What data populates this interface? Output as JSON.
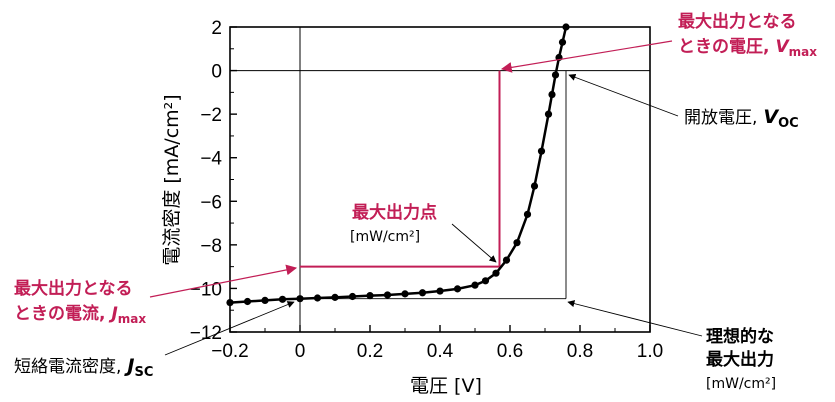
{
  "chart_data": {
    "type": "line",
    "xlabel": "電圧 [V]",
    "ylabel": "電流密度 [mA/cm²]",
    "xlim": [
      -0.2,
      1.0
    ],
    "ylim": [
      -12,
      2
    ],
    "x_ticks": [
      "−0.2",
      "0",
      "0.2",
      "0.4",
      "0.6",
      "0.8",
      "1.0"
    ],
    "y_ticks": [
      "2",
      "0",
      "−2",
      "−4",
      "−6",
      "−8",
      "−10",
      "−12"
    ],
    "grid": false,
    "series": [
      {
        "x": [
          -0.2,
          -0.15,
          -0.1,
          -0.05,
          0.0,
          0.05,
          0.1,
          0.15,
          0.2,
          0.25,
          0.3,
          0.35,
          0.4,
          0.45,
          0.5,
          0.53,
          0.56,
          0.59,
          0.62,
          0.65,
          0.67,
          0.69,
          0.71,
          0.72,
          0.73,
          0.74,
          0.75,
          0.76
        ],
        "y": [
          -10.65,
          -10.6,
          -10.55,
          -10.5,
          -10.47,
          -10.44,
          -10.41,
          -10.37,
          -10.33,
          -10.3,
          -10.25,
          -10.2,
          -10.12,
          -10.02,
          -9.85,
          -9.65,
          -9.3,
          -8.7,
          -7.9,
          -6.6,
          -5.3,
          -3.7,
          -2.0,
          -1.1,
          -0.2,
          0.6,
          1.3,
          2.0
        ]
      }
    ],
    "reference_lines": {
      "v_max": 0.57,
      "j_max": -9.0,
      "v_oc": 0.76,
      "j_sc": -10.47
    },
    "annotations": {
      "vmax_line1": "最大出力となる",
      "vmax_line2": "ときの電圧,",
      "vmax_sym": "V",
      "vmax_sub": "max",
      "voc_text": "開放電圧,",
      "voc_sym": "V",
      "voc_sub": "OC",
      "mpp_title": "最大出力点",
      "mpp_unit": "[mW/cm²]",
      "jmax_line1": "最大出力となる",
      "jmax_line2": "ときの電流,",
      "jmax_sym": "J",
      "jmax_sub": "max",
      "jsc_text": "短絡電流密度,",
      "jsc_sym": "J",
      "jsc_sub": "SC",
      "ideal_line1": "理想的な",
      "ideal_line2": "最大出力",
      "ideal_unit": "[mW/cm²]"
    },
    "colors": {
      "accent": "#c21e56",
      "curve": "#000000"
    }
  }
}
